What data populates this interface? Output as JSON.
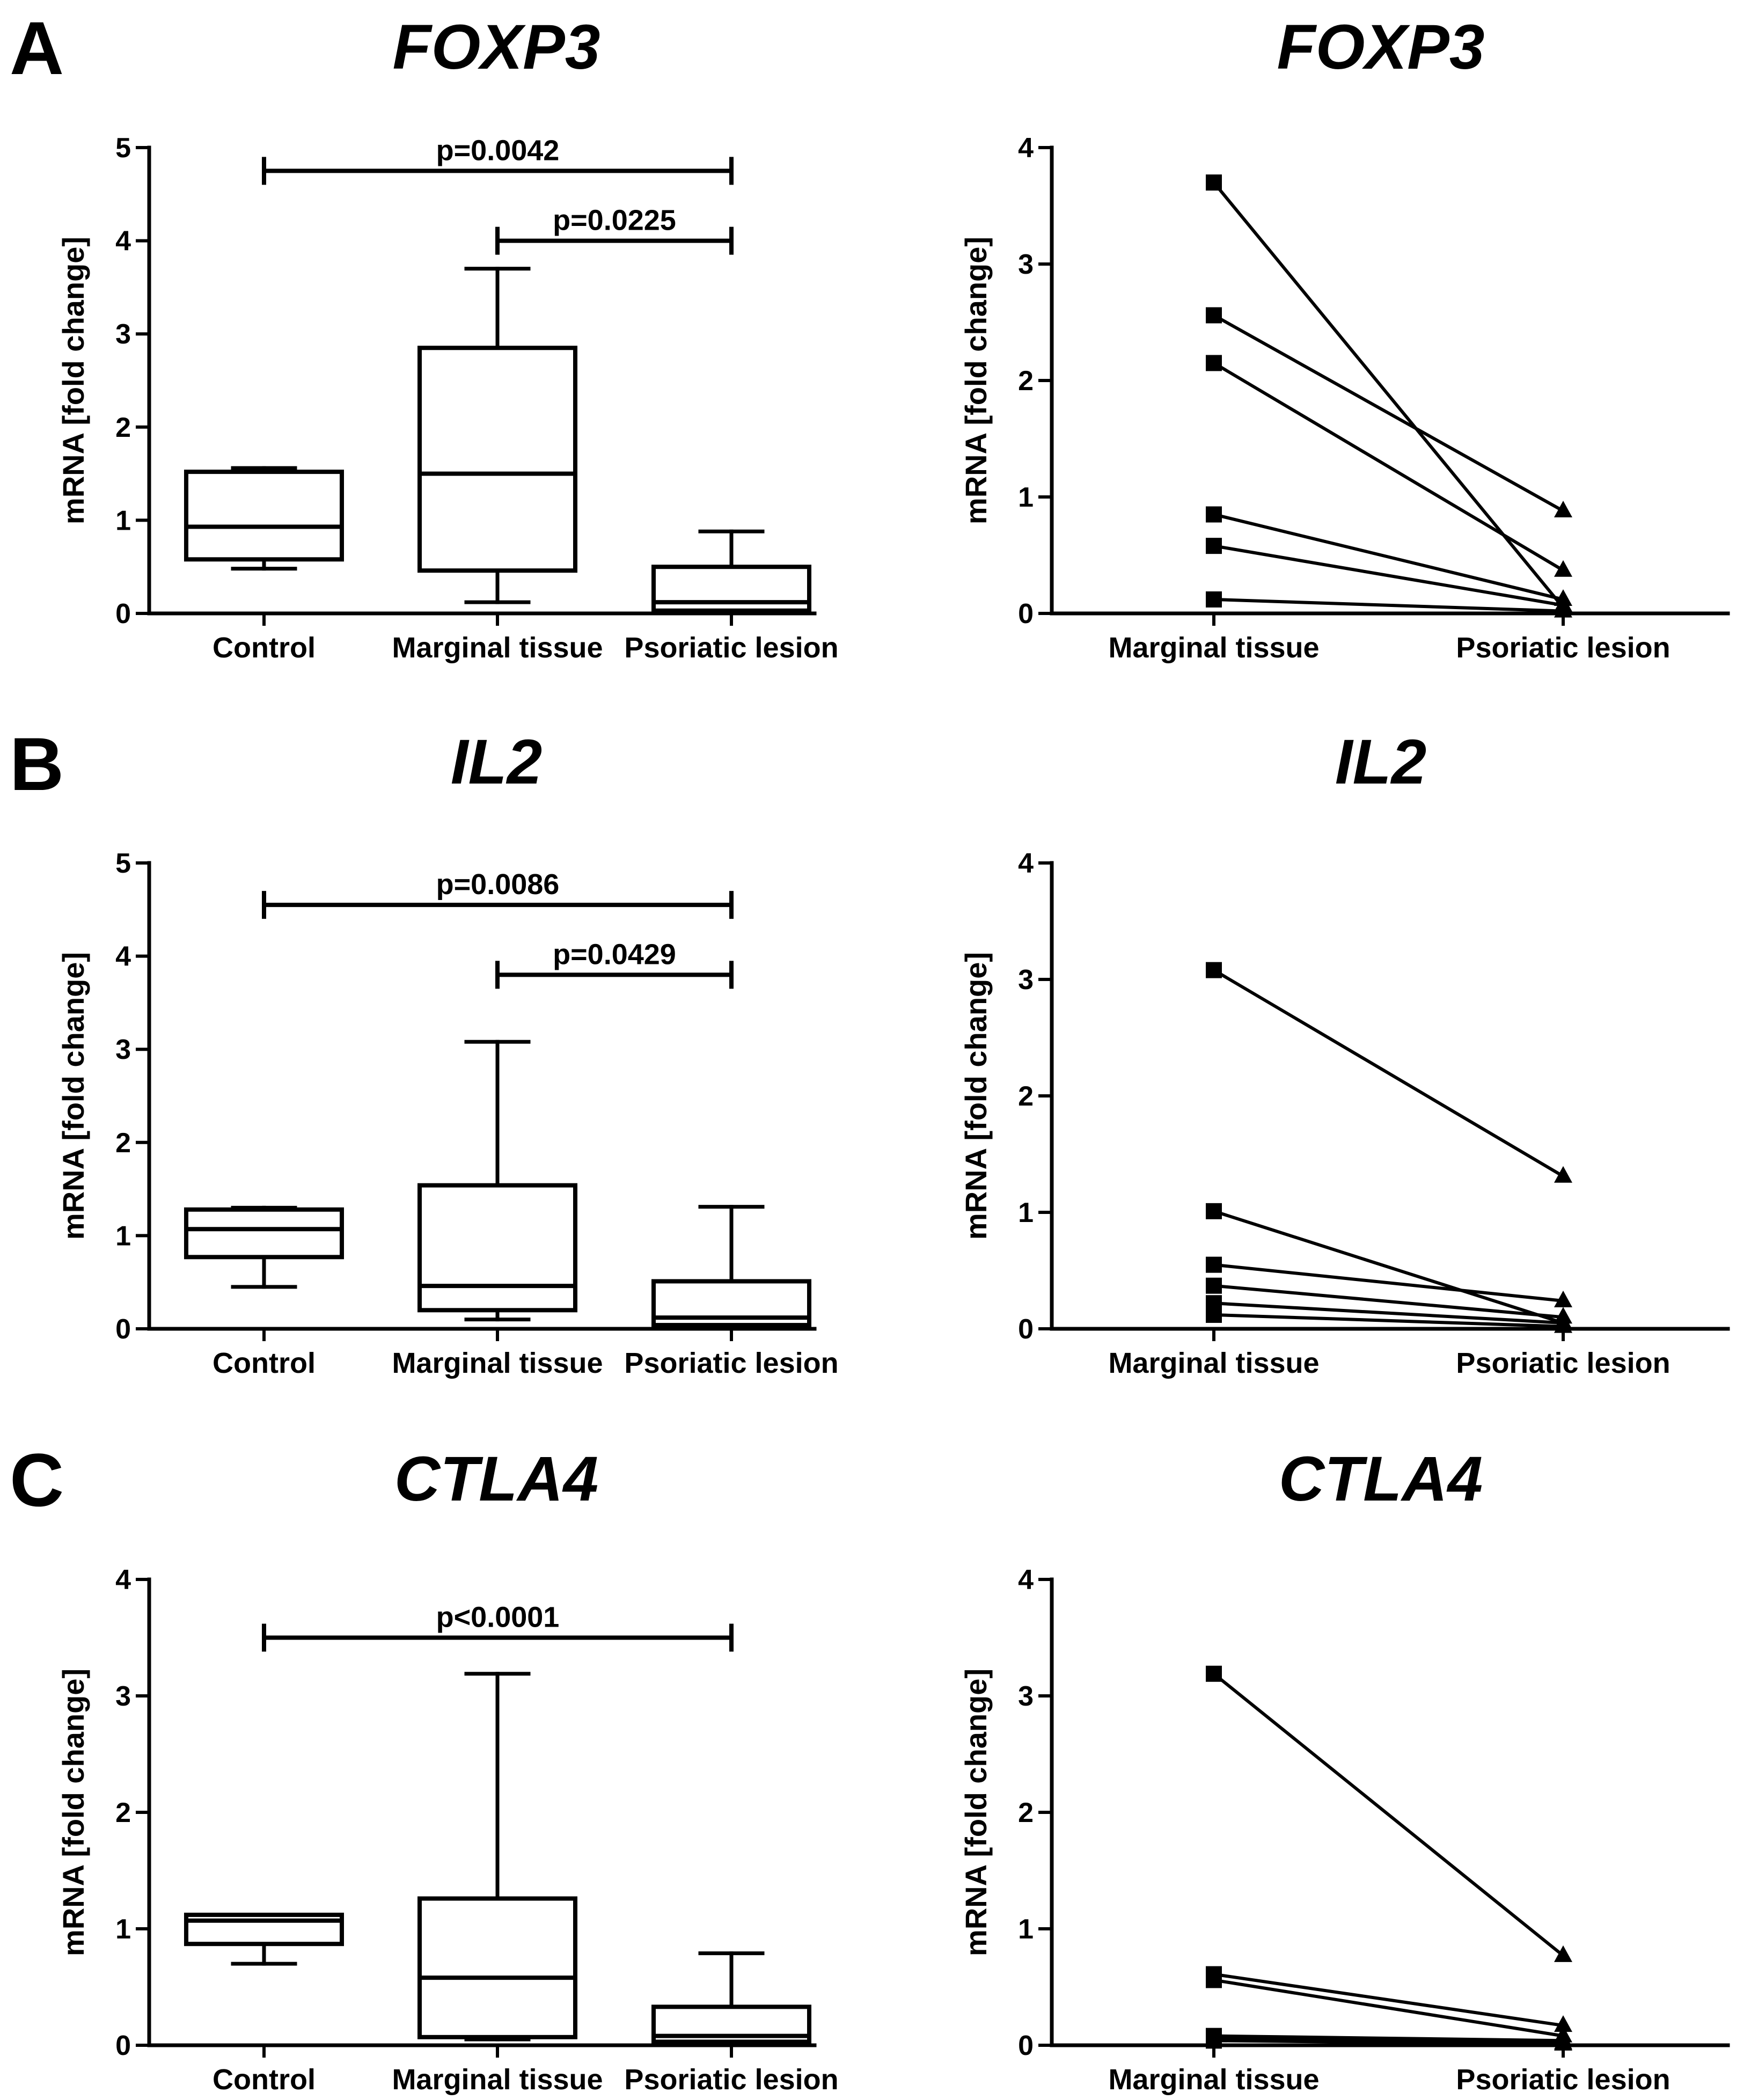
{
  "panels": [
    {
      "letter": "A",
      "gene": "FOXP3"
    },
    {
      "letter": "B",
      "gene": "IL2"
    },
    {
      "letter": "C",
      "gene": "CTLA4"
    }
  ],
  "chart_data": [
    {
      "type": "box",
      "panel": "A",
      "title": "FOXP3",
      "ylabel": "mRNA [fold change]",
      "ylim": [
        0,
        5
      ],
      "yticks": [
        "0",
        "1",
        "2",
        "3",
        "4",
        "5"
      ],
      "categories": [
        "Control",
        "Marginal tissue",
        "Psoriatic lesion"
      ],
      "boxes": [
        {
          "min": 0.48,
          "q1": 0.58,
          "median": 0.93,
          "q3": 1.52,
          "max": 1.56
        },
        {
          "min": 0.12,
          "q1": 0.46,
          "median": 1.5,
          "q3": 2.85,
          "max": 3.7
        },
        {
          "min": 0.01,
          "q1": 0.03,
          "median": 0.12,
          "q3": 0.5,
          "max": 0.88
        }
      ],
      "significance": [
        {
          "from": 0,
          "to": 2,
          "y": 4.75,
          "label": "p=0.0042"
        },
        {
          "from": 1,
          "to": 2,
          "y": 4.0,
          "label": "p=0.0225"
        }
      ]
    },
    {
      "type": "paired",
      "panel": "A",
      "title": "FOXP3",
      "ylabel": "mRNA [fold change]",
      "ylim": [
        0,
        4
      ],
      "yticks": [
        "0",
        "1",
        "2",
        "3",
        "4"
      ],
      "categories": [
        "Marginal tissue",
        "Psoriatic lesion"
      ],
      "pairs": [
        [
          3.7,
          0.05
        ],
        [
          2.56,
          0.88
        ],
        [
          2.15,
          0.37
        ],
        [
          0.85,
          0.12
        ],
        [
          0.58,
          0.07
        ],
        [
          0.12,
          0.02
        ]
      ]
    },
    {
      "type": "box",
      "panel": "B",
      "title": "IL2",
      "ylabel": "mRNA [fold change]",
      "ylim": [
        0,
        5
      ],
      "yticks": [
        "0",
        "1",
        "2",
        "3",
        "4",
        "5"
      ],
      "categories": [
        "Control",
        "Marginal tissue",
        "Psoriatic lesion"
      ],
      "boxes": [
        {
          "min": 0.45,
          "q1": 0.77,
          "median": 1.07,
          "q3": 1.28,
          "max": 1.3
        },
        {
          "min": 0.1,
          "q1": 0.2,
          "median": 0.46,
          "q3": 1.54,
          "max": 3.08
        },
        {
          "min": 0.01,
          "q1": 0.04,
          "median": 0.12,
          "q3": 0.51,
          "max": 1.31
        }
      ],
      "significance": [
        {
          "from": 0,
          "to": 2,
          "y": 4.55,
          "label": "p=0.0086"
        },
        {
          "from": 1,
          "to": 2,
          "y": 3.8,
          "label": "p=0.0429"
        }
      ]
    },
    {
      "type": "paired",
      "panel": "B",
      "title": "IL2",
      "ylabel": "mRNA [fold change]",
      "ylim": [
        0,
        4
      ],
      "yticks": [
        "0",
        "1",
        "2",
        "3",
        "4"
      ],
      "categories": [
        "Marginal tissue",
        "Psoriatic lesion"
      ],
      "pairs": [
        [
          3.08,
          1.31
        ],
        [
          1.01,
          0.05
        ],
        [
          0.55,
          0.24
        ],
        [
          0.37,
          0.1
        ],
        [
          0.22,
          0.05
        ],
        [
          0.12,
          0.02
        ]
      ]
    },
    {
      "type": "box",
      "panel": "C",
      "title": "CTLA4",
      "ylabel": "mRNA [fold change]",
      "ylim": [
        0,
        4
      ],
      "yticks": [
        "0",
        "1",
        "2",
        "3",
        "4"
      ],
      "categories": [
        "Control",
        "Marginal tissue",
        "Psoriatic lesion"
      ],
      "boxes": [
        {
          "min": 0.7,
          "q1": 0.87,
          "median": 1.07,
          "q3": 1.12,
          "max": 1.12
        },
        {
          "min": 0.05,
          "q1": 0.07,
          "median": 0.58,
          "q3": 1.26,
          "max": 3.19
        },
        {
          "min": 0.01,
          "q1": 0.03,
          "median": 0.08,
          "q3": 0.33,
          "max": 0.79
        }
      ],
      "significance": [
        {
          "from": 0,
          "to": 2,
          "y": 3.5,
          "label": "p<0.0001"
        }
      ]
    },
    {
      "type": "paired",
      "panel": "C",
      "title": "CTLA4",
      "ylabel": "mRNA [fold change]",
      "ylim": [
        0,
        4
      ],
      "yticks": [
        "0",
        "1",
        "2",
        "3",
        "4"
      ],
      "categories": [
        "Marginal tissue",
        "Psoriatic lesion"
      ],
      "pairs": [
        [
          3.19,
          0.77
        ],
        [
          0.61,
          0.17
        ],
        [
          0.56,
          0.08
        ],
        [
          0.08,
          0.04
        ],
        [
          0.06,
          0.02
        ],
        [
          0.04,
          0.01
        ]
      ]
    }
  ]
}
